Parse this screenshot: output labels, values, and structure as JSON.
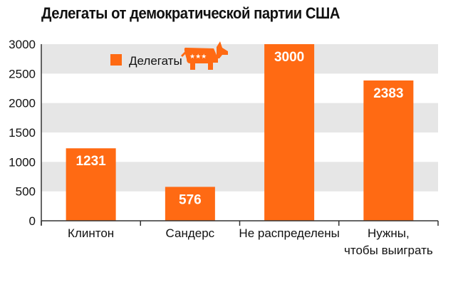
{
  "chart_data": {
    "type": "bar",
    "title": "Делегаты от демократической партии США",
    "xlabel": "",
    "ylabel": "",
    "categories": [
      [
        "Клинтон"
      ],
      [
        "Сандерс"
      ],
      [
        "Не распределены"
      ],
      [
        "Нужны,",
        "чтобы выиграть"
      ]
    ],
    "series": [
      {
        "name": "Делегаты",
        "values": [
          1231,
          576,
          3000,
          2383
        ],
        "labels": [
          "1231",
          "576",
          "3000",
          "2383"
        ]
      }
    ],
    "ylim": [
      0,
      3000
    ],
    "yticks": [
      0,
      500,
      1000,
      1500,
      2000,
      2500,
      3000
    ],
    "ytick_labels": [
      "0",
      "500",
      "1000",
      "1500",
      "2000",
      "2500",
      "3000"
    ],
    "grid": "alternating horizontal bands",
    "legend_position": "top-left",
    "legend_icon": "democratic-donkey-icon",
    "colors": {
      "bar": "#ff6a13",
      "band": "#e6e6e6",
      "axis": "#333333",
      "donkey": "#ff6a13"
    }
  }
}
